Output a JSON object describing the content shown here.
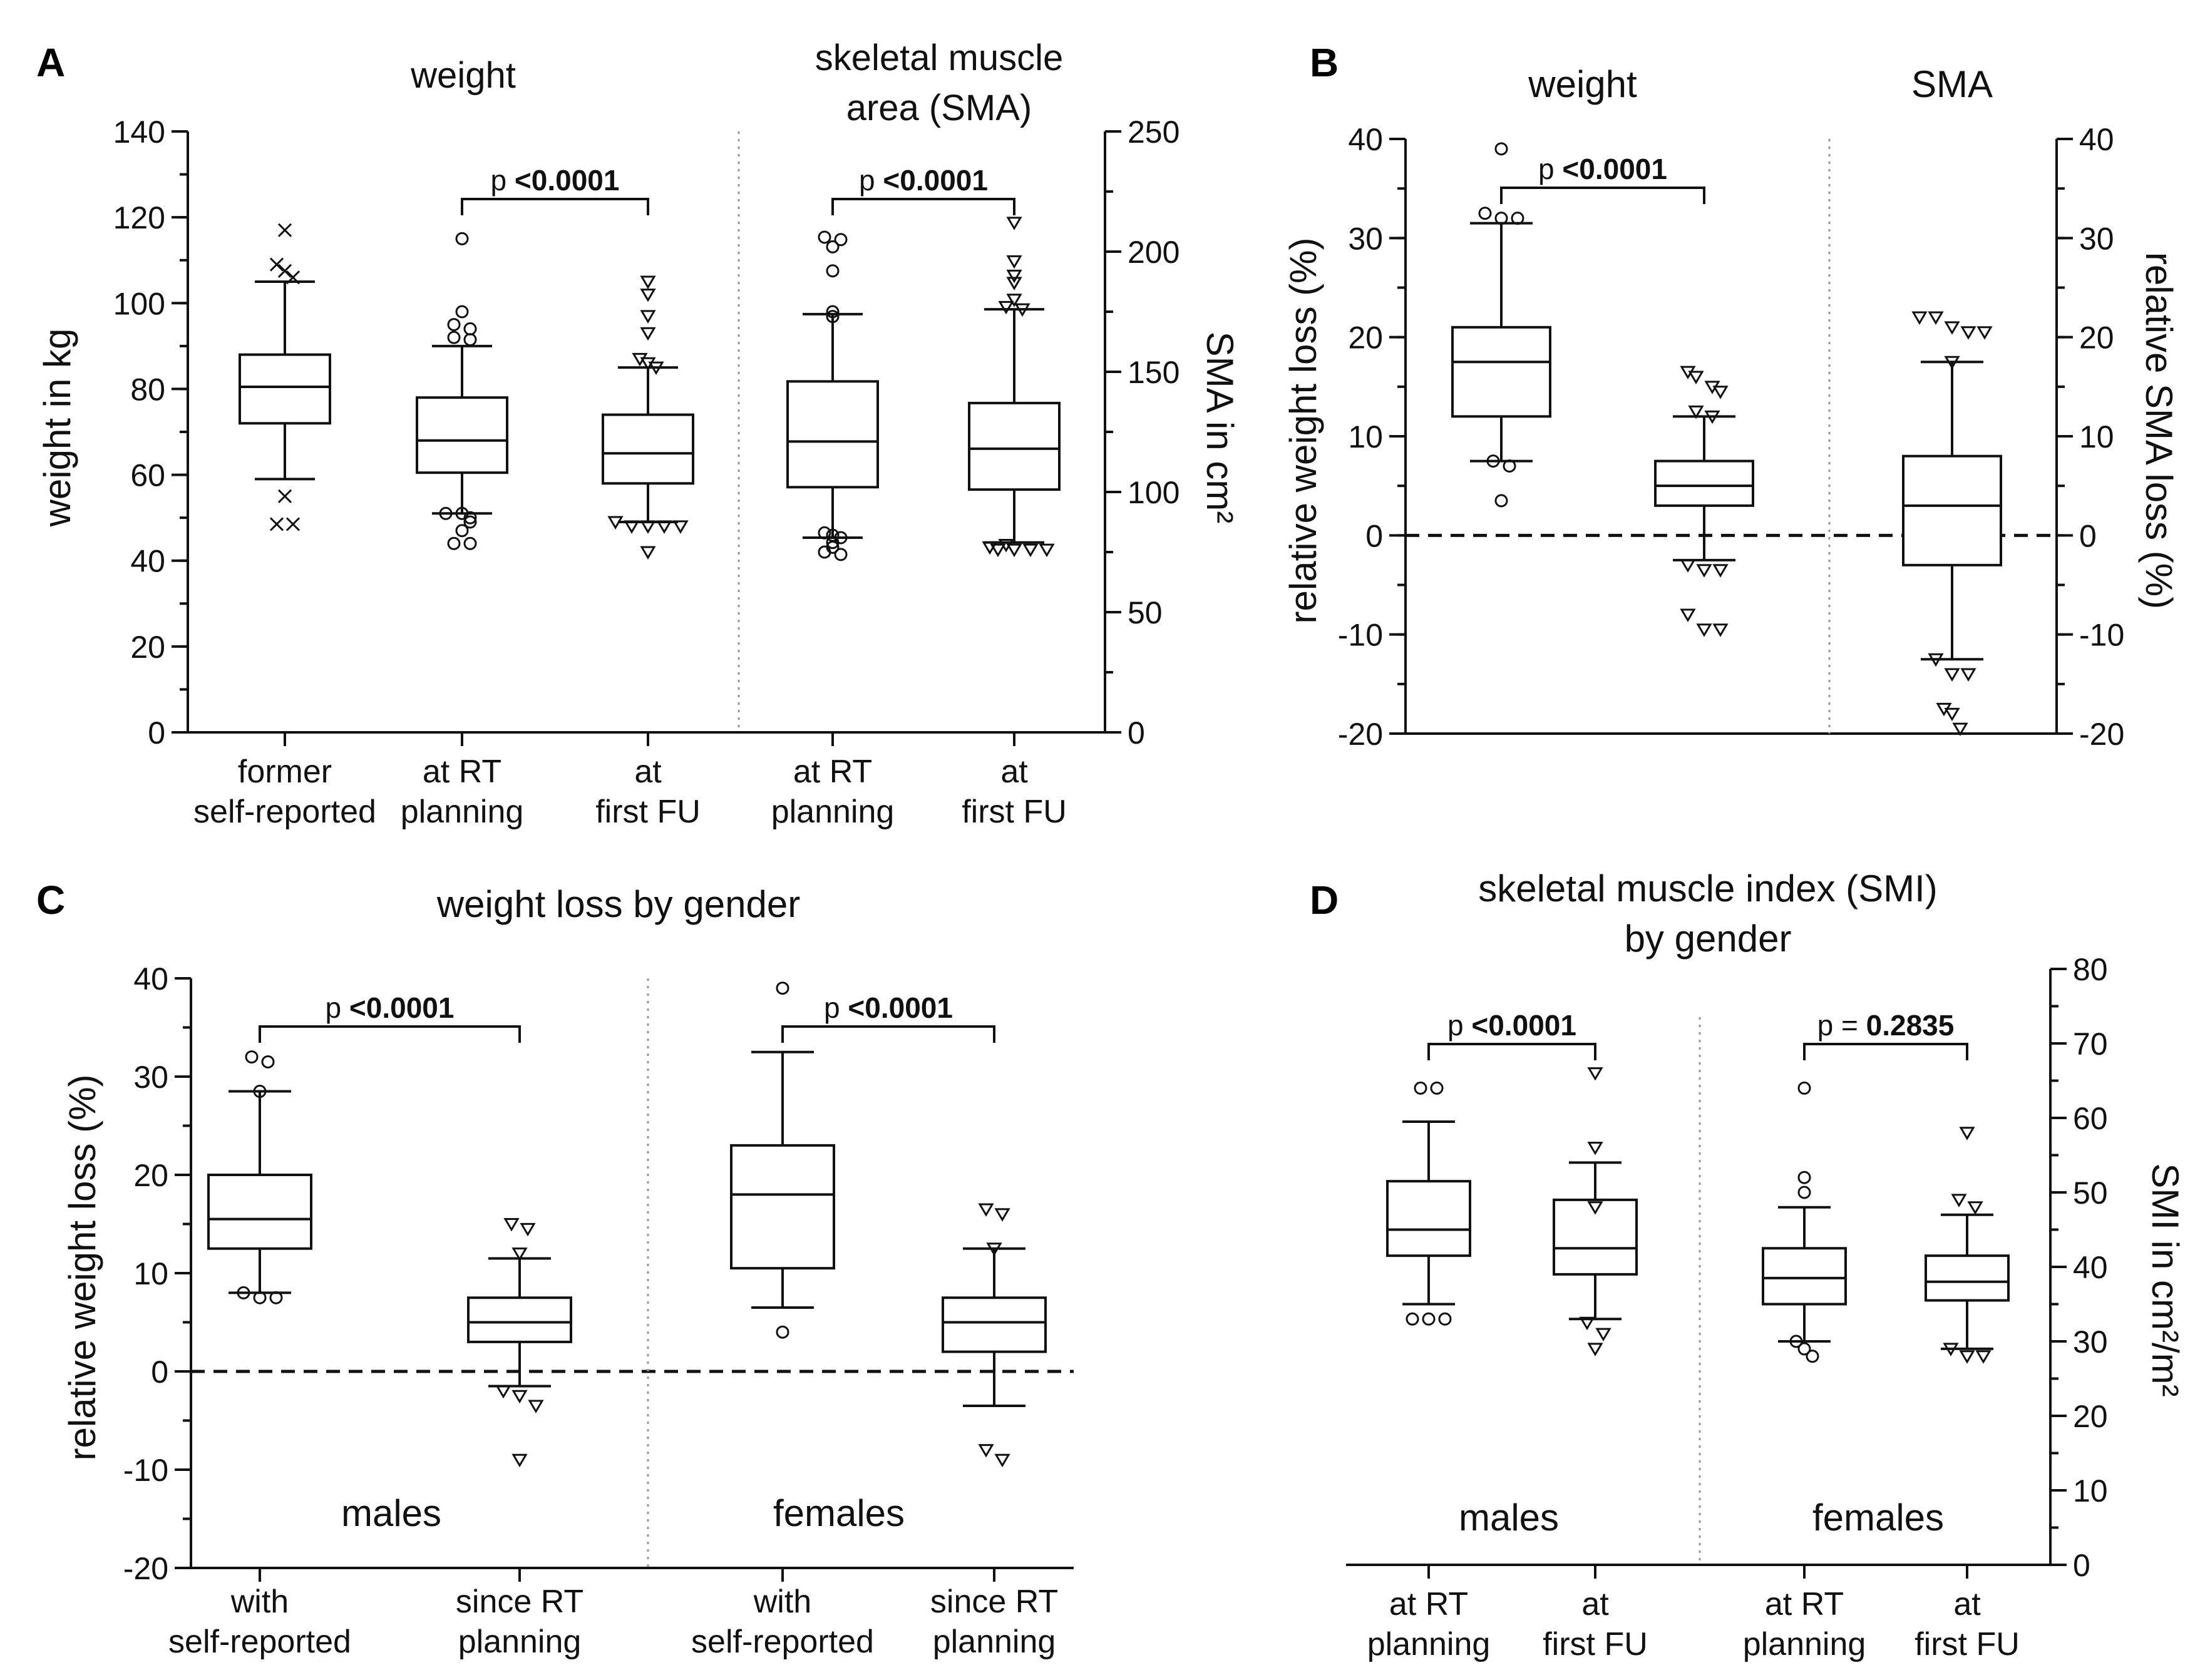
{
  "chart_data": [
    {
      "panel": "A",
      "type": "box",
      "headers": [
        "weight",
        "skeletal muscle",
        "area (SMA)"
      ],
      "ylabel_left": "weight in kg",
      "ylim_left": [
        0,
        140
      ],
      "yticks_left": [
        "0",
        "20",
        "40",
        "60",
        "80",
        "100",
        "120",
        "140"
      ],
      "ylabel_right": "SMA in cm²",
      "ylim_right": [
        0,
        250
      ],
      "yticks_right": [
        "0",
        "50",
        "100",
        "150",
        "200",
        "250"
      ],
      "groups": [
        {
          "l1": "former",
          "l2": "self-reported",
          "axis": "left",
          "marker": "x",
          "q1": 72,
          "median": 80.5,
          "q3": 88,
          "wl": 59,
          "wh": 105,
          "outliers": [
            117,
            109,
            107.5,
            106,
            55,
            48.5,
            48.5
          ]
        },
        {
          "l1": "at RT",
          "l2": "planning",
          "axis": "left",
          "marker": "circle",
          "q1": 60.5,
          "median": 68,
          "q3": 78,
          "wl": 51,
          "wh": 90,
          "outliers": [
            115,
            98,
            95,
            94,
            92,
            91.5,
            51,
            51,
            50,
            49,
            47,
            44,
            44
          ]
        },
        {
          "l1": "at",
          "l2": "first FU",
          "axis": "left",
          "marker": "triangle",
          "q1": 58,
          "median": 65,
          "q3": 74,
          "wl": 49,
          "wh": 85,
          "outliers": [
            105,
            102,
            97,
            93,
            87,
            86,
            85,
            49,
            48,
            48,
            48,
            48,
            42
          ]
        },
        {
          "l1": "at RT",
          "l2": "planning",
          "axis": "right",
          "marker": "circle",
          "q1": 102,
          "median": 121,
          "q3": 146,
          "wl": 81,
          "wh": 174,
          "outliers": [
            206,
            205,
            202,
            192,
            175,
            173,
            83,
            82,
            81,
            79,
            77,
            75,
            74
          ]
        },
        {
          "l1": "at",
          "l2": "first FU",
          "axis": "right",
          "marker": "triangle",
          "q1": 101,
          "median": 118,
          "q3": 137,
          "wl": 79,
          "wh": 176,
          "outliers": [
            212,
            196,
            190,
            187,
            180,
            177,
            176,
            78,
            77,
            76,
            76,
            76,
            76
          ]
        }
      ],
      "comparisons": [
        {
          "prefix": "p",
          "p": "<0.0001",
          "from": 1,
          "to": 2
        },
        {
          "prefix": "p",
          "p": "<0.0001",
          "from": 3,
          "to": 4
        }
      ]
    },
    {
      "panel": "B",
      "type": "box",
      "headers": [
        "weight",
        "SMA"
      ],
      "ylabel_left": "relative weight loss (%)",
      "ylabel_right": "relative SMA loss (%)",
      "ylim": [
        -20,
        40
      ],
      "yticks": [
        "-20",
        "-10",
        "0",
        "10",
        "20",
        "30",
        "40"
      ],
      "groups": [
        {
          "marker": "circle",
          "q1": 12,
          "median": 17.5,
          "q3": 21,
          "wl": 7.5,
          "wh": 31.5,
          "outliers": [
            39,
            32.5,
            32,
            32,
            7.5,
            7,
            3.5
          ]
        },
        {
          "marker": "triangle",
          "q1": 3,
          "median": 5,
          "q3": 7.5,
          "wl": -2.5,
          "wh": 12,
          "outliers": [
            16.5,
            16,
            15,
            14.5,
            12.5,
            12,
            -3,
            -3.5,
            -3.5,
            -8,
            -9.5,
            -9.5
          ]
        },
        {
          "marker": "triangle",
          "q1": -3,
          "median": 3,
          "q3": 8,
          "wl": -12.5,
          "wh": 17.5,
          "outliers": [
            22,
            22,
            21,
            20.5,
            20.5,
            17.5,
            -12.5,
            -14,
            -14,
            -17.5,
            -18,
            -19.5
          ]
        }
      ],
      "comparisons": [
        {
          "prefix": "p",
          "p": "<0.0001",
          "from": 0,
          "to": 1
        }
      ]
    },
    {
      "panel": "C",
      "type": "box",
      "title": "weight loss by gender",
      "ylabel": "relative weight loss (%)",
      "ylim": [
        -20,
        40
      ],
      "yticks": [
        "-20",
        "-10",
        "0",
        "10",
        "20",
        "30",
        "40"
      ],
      "xlabels": [
        {
          "l1": "with",
          "l2": "self-reported"
        },
        {
          "l1": "since RT",
          "l2": "planning"
        },
        {
          "l1": "with",
          "l2": "self-reported"
        },
        {
          "l1": "since RT",
          "l2": "planning"
        }
      ],
      "subgroups": [
        "males",
        "females"
      ],
      "groups": [
        {
          "marker": "circle",
          "q1": 12.5,
          "median": 15.5,
          "q3": 20,
          "wl": 8,
          "wh": 28.5,
          "outliers": [
            32,
            31.5,
            28.5,
            8,
            7.5,
            7.5
          ]
        },
        {
          "marker": "triangle",
          "q1": 3,
          "median": 5,
          "q3": 7.5,
          "wl": -1.5,
          "wh": 11.5,
          "outliers": [
            15,
            14.5,
            12,
            -2,
            -2.5,
            -3.5,
            -9
          ]
        },
        {
          "marker": "circle",
          "q1": 10.5,
          "median": 18,
          "q3": 23,
          "wl": 6.5,
          "wh": 32.5,
          "outliers": [
            39,
            4
          ]
        },
        {
          "marker": "triangle",
          "q1": 2,
          "median": 5,
          "q3": 7.5,
          "wl": -3.5,
          "wh": 12.5,
          "outliers": [
            16.5,
            16,
            12.5,
            -8,
            -9
          ]
        }
      ],
      "comparisons": [
        {
          "prefix": "p",
          "p": "<0.0001",
          "from": 0,
          "to": 1
        },
        {
          "prefix": "p",
          "p": "<0.0001",
          "from": 2,
          "to": 3
        }
      ]
    },
    {
      "panel": "D",
      "type": "box",
      "title_lines": [
        "skeletal muscle index (SMI)",
        "by gender"
      ],
      "ylabel": "SMI in cm²/m²",
      "ylim": [
        0,
        80
      ],
      "yticks": [
        "0",
        "10",
        "20",
        "30",
        "40",
        "50",
        "60",
        "70",
        "80"
      ],
      "xlabels": [
        {
          "l1": "at RT",
          "l2": "planning"
        },
        {
          "l1": "at",
          "l2": "first FU"
        },
        {
          "l1": "at RT",
          "l2": "planning"
        },
        {
          "l1": "at",
          "l2": "first FU"
        }
      ],
      "subgroups": [
        "males",
        "females"
      ],
      "groups": [
        {
          "marker": "circle",
          "q1": 41.5,
          "median": 45,
          "q3": 51.5,
          "wl": 35,
          "wh": 59.5,
          "outliers": [
            64,
            64,
            33,
            33,
            33
          ]
        },
        {
          "marker": "triangle",
          "q1": 39,
          "median": 42.5,
          "q3": 49,
          "wl": 33,
          "wh": 54,
          "outliers": [
            66,
            56,
            48,
            32.5,
            31,
            29
          ]
        },
        {
          "marker": "circle",
          "q1": 35,
          "median": 38.5,
          "q3": 42.5,
          "wl": 30,
          "wh": 48,
          "outliers": [
            64,
            52,
            50,
            30,
            29,
            28
          ]
        },
        {
          "marker": "triangle",
          "q1": 35.5,
          "median": 38,
          "q3": 41.5,
          "wl": 29,
          "wh": 47,
          "outliers": [
            58,
            49,
            48,
            29,
            28,
            28
          ]
        }
      ],
      "comparisons": [
        {
          "prefix": "p",
          "p": "<0.0001",
          "from": 0,
          "to": 1
        },
        {
          "prefix": "p =",
          "p": "0.2835",
          "from": 2,
          "to": 3
        }
      ]
    }
  ]
}
